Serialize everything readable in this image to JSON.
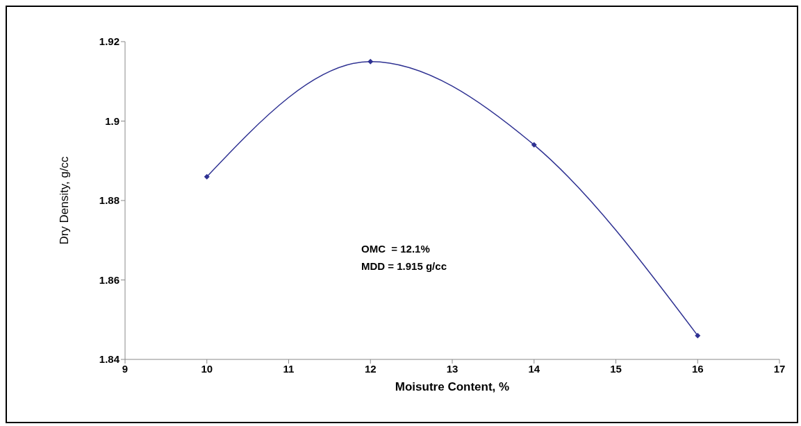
{
  "chart_data": {
    "type": "line",
    "xlabel": "Moisutre Content, %",
    "ylabel": "Dry Density, g/cc",
    "x": [
      10,
      12,
      14,
      16
    ],
    "series": [
      {
        "color": "#2e3192",
        "values": [
          1.886,
          1.915,
          1.894,
          1.846
        ]
      }
    ],
    "xlim": [
      9,
      17
    ],
    "xticks": [
      9,
      10,
      11,
      12,
      13,
      14,
      15,
      16,
      17
    ],
    "ylim": [
      1.84,
      1.92
    ],
    "yticks": [
      1.84,
      1.86,
      1.88,
      1.9,
      1.92
    ],
    "marker": "diamond",
    "line_style": "solid",
    "annotations": [
      "OMC  = 12.1%",
      "MDD = 1.915 g/cc"
    ]
  }
}
